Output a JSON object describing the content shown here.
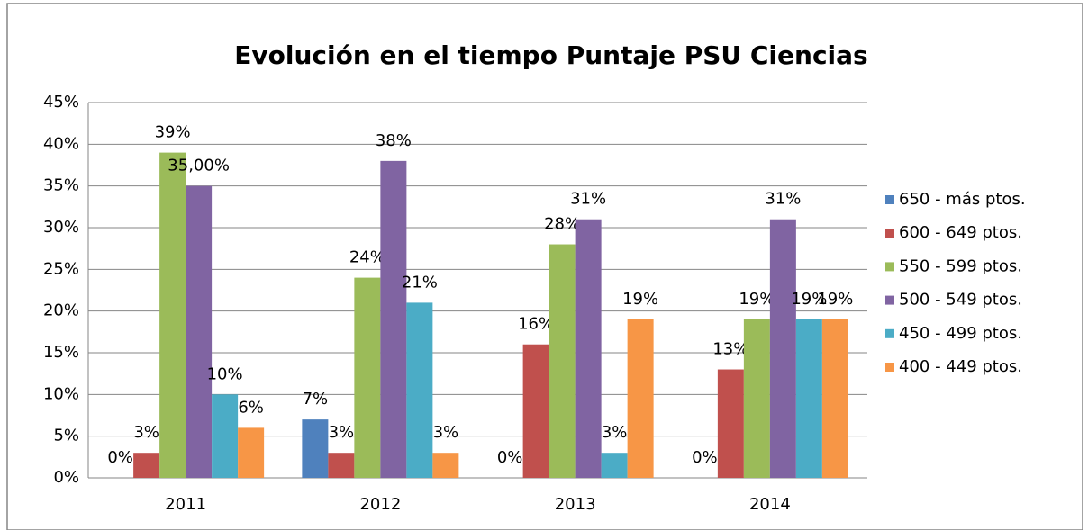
{
  "chart_data": {
    "type": "bar",
    "title": "Evolución en el tiempo Puntaje PSU Ciencias",
    "categories": [
      "2011",
      "2012",
      "2013",
      "2014"
    ],
    "series": [
      {
        "name": "650 - más ptos.",
        "color": "#4f81bd",
        "values": [
          0,
          7,
          0,
          0
        ],
        "value_labels": [
          "0%",
          "7%",
          "0%",
          "0%"
        ]
      },
      {
        "name": "600 - 649 ptos.",
        "color": "#c0504d",
        "values": [
          3,
          3,
          16,
          13
        ],
        "value_labels": [
          "3%",
          "3%",
          "16%",
          "13%"
        ]
      },
      {
        "name": "550 - 599 ptos.",
        "color": "#9bbb59",
        "values": [
          39,
          24,
          28,
          19
        ],
        "value_labels": [
          "39%",
          "24%",
          "28%",
          "19%"
        ]
      },
      {
        "name": "500 - 549 ptos.",
        "color": "#8064a2",
        "values": [
          35,
          38,
          31,
          31
        ],
        "value_labels": [
          "35,00%",
          "38%",
          "31%",
          "31%"
        ]
      },
      {
        "name": "450 - 499 ptos.",
        "color": "#4bacc6",
        "values": [
          10,
          21,
          3,
          19
        ],
        "value_labels": [
          "10%",
          "21%",
          "3%",
          "19%"
        ]
      },
      {
        "name": "400 - 449 ptos.",
        "color": "#f79646",
        "values": [
          6,
          3,
          19,
          19
        ],
        "value_labels": [
          "6%",
          "3%",
          "19%",
          "19%"
        ]
      }
    ],
    "ylim": [
      0,
      45
    ],
    "yticks": [
      {
        "value": 0,
        "label": "0%"
      },
      {
        "value": 5,
        "label": "5%"
      },
      {
        "value": 10,
        "label": "10%"
      },
      {
        "value": 15,
        "label": "15%"
      },
      {
        "value": 20,
        "label": "20%"
      },
      {
        "value": 25,
        "label": "25%"
      },
      {
        "value": 30,
        "label": "30%"
      },
      {
        "value": 35,
        "label": "35%"
      },
      {
        "value": 40,
        "label": "40%"
      },
      {
        "value": 45,
        "label": "45%"
      }
    ],
    "grid": true,
    "legend": "right"
  }
}
